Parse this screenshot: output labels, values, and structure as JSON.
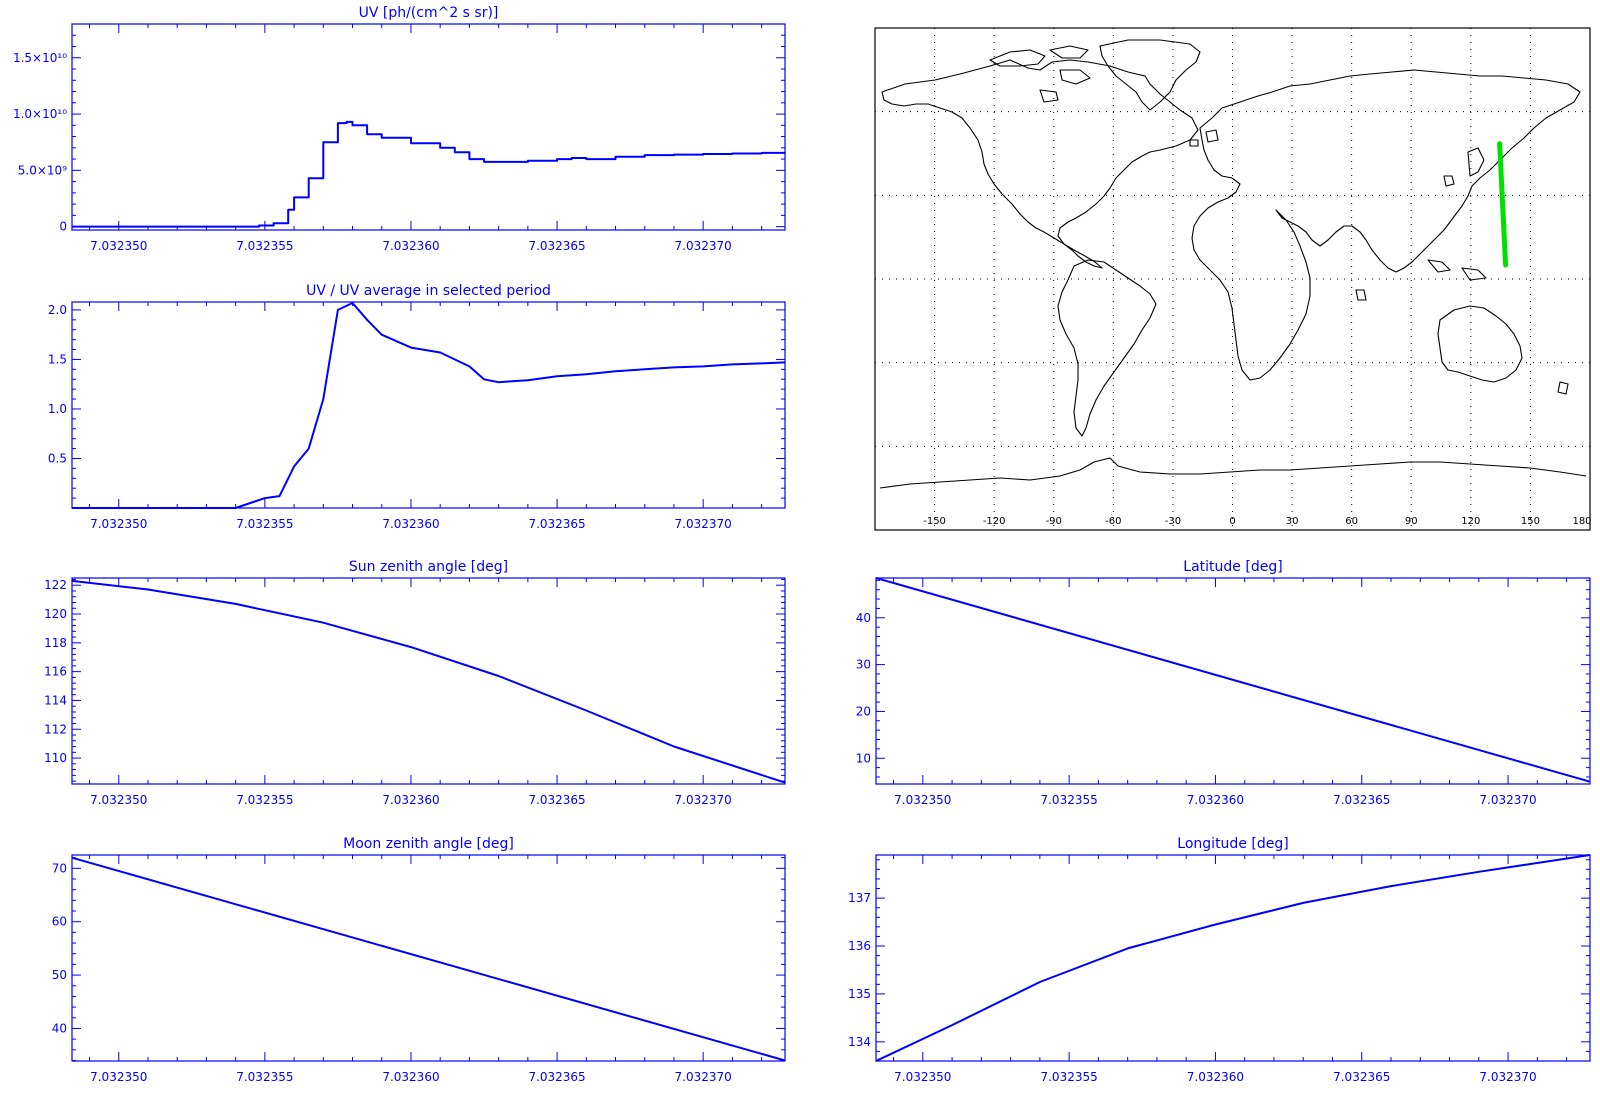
{
  "chart_data": [
    {
      "id": "uv",
      "type": "line",
      "title": "UV [ph/(cm^2 s sr)]",
      "step": true,
      "xlim": [
        7.0323484,
        7.0323728
      ],
      "x_ticks": [
        "7.032350",
        "7.032355",
        "7.032360",
        "7.032365",
        "7.032370"
      ],
      "ylim": [
        -300000000.0,
        18000000000.0
      ],
      "y_ticks": [
        {
          "value": 0,
          "label": "0"
        },
        {
          "value": 5000000000.0,
          "label": "5.0×10⁹"
        },
        {
          "value": 10000000000.0,
          "label": "1.0×10¹⁰"
        },
        {
          "value": 15000000000.0,
          "label": "1.5×10¹⁰"
        }
      ],
      "x": [
        7.0323484,
        7.032354,
        7.0323548,
        7.0323553,
        7.0323558,
        7.032356,
        7.0323565,
        7.032357,
        7.0323575,
        7.0323578,
        7.032358,
        7.0323585,
        7.032359,
        7.03236,
        7.032361,
        7.0323615,
        7.032362,
        7.0323625,
        7.032363,
        7.032364,
        7.032365,
        7.0323655,
        7.032366,
        7.032367,
        7.032368,
        7.032369,
        7.03237,
        7.032371,
        7.032372,
        7.0323728
      ],
      "y": [
        0,
        0,
        100000000.0,
        300000000.0,
        1500000000.0,
        2600000000.0,
        4300000000.0,
        7500000000.0,
        9200000000.0,
        9300000000.0,
        9000000000.0,
        8200000000.0,
        7900000000.0,
        7400000000.0,
        7000000000.0,
        6600000000.0,
        6000000000.0,
        5750000000.0,
        5750000000.0,
        5850000000.0,
        6000000000.0,
        6100000000.0,
        6000000000.0,
        6200000000.0,
        6350000000.0,
        6400000000.0,
        6450000000.0,
        6500000000.0,
        6550000000.0,
        6600000000.0
      ],
      "color": "#0000ff"
    },
    {
      "id": "uv_ratio",
      "type": "line",
      "title": "UV / UV average in selected period",
      "xlim": [
        7.0323484,
        7.0323728
      ],
      "x_ticks": [
        "7.032350",
        "7.032355",
        "7.032360",
        "7.032365",
        "7.032370"
      ],
      "ylim": [
        0.0,
        2.08
      ],
      "y_ticks": [
        {
          "value": 0.5,
          "label": "0.5"
        },
        {
          "value": 1.0,
          "label": "1.0"
        },
        {
          "value": 1.5,
          "label": "1.5"
        },
        {
          "value": 2.0,
          "label": "2.0"
        }
      ],
      "x": [
        7.0323484,
        7.032354,
        7.0323545,
        7.032355,
        7.0323555,
        7.032356,
        7.0323565,
        7.032357,
        7.0323575,
        7.032358,
        7.0323585,
        7.032359,
        7.03236,
        7.032361,
        7.032362,
        7.0323625,
        7.032363,
        7.032364,
        7.032365,
        7.032366,
        7.032367,
        7.032368,
        7.032369,
        7.03237,
        7.032371,
        7.032372,
        7.0323728
      ],
      "y": [
        0,
        0,
        0.05,
        0.1,
        0.12,
        0.42,
        0.6,
        1.1,
        2.0,
        2.07,
        1.9,
        1.75,
        1.62,
        1.57,
        1.43,
        1.3,
        1.27,
        1.29,
        1.33,
        1.35,
        1.38,
        1.4,
        1.42,
        1.43,
        1.45,
        1.46,
        1.47
      ],
      "color": "#0000ff"
    },
    {
      "id": "sun",
      "type": "line",
      "title": "Sun zenith angle [deg]",
      "xlim": [
        7.0323484,
        7.0323728
      ],
      "x_ticks": [
        "7.032350",
        "7.032355",
        "7.032360",
        "7.032365",
        "7.032370"
      ],
      "ylim": [
        108.2,
        122.5
      ],
      "y_ticks": [
        {
          "value": 110,
          "label": "110"
        },
        {
          "value": 112,
          "label": "112"
        },
        {
          "value": 114,
          "label": "114"
        },
        {
          "value": 116,
          "label": "116"
        },
        {
          "value": 118,
          "label": "118"
        },
        {
          "value": 120,
          "label": "120"
        },
        {
          "value": 122,
          "label": "122"
        }
      ],
      "x": [
        7.0323484,
        7.032351,
        7.032354,
        7.032357,
        7.03236,
        7.032363,
        7.032366,
        7.032369,
        7.0323728
      ],
      "y": [
        122.3,
        121.7,
        120.7,
        119.4,
        117.7,
        115.7,
        113.3,
        110.8,
        108.3
      ],
      "color": "#0000ff"
    },
    {
      "id": "lat",
      "type": "line",
      "title": "Latitude [deg]",
      "xlim": [
        7.0323484,
        7.0323728
      ],
      "x_ticks": [
        "7.032350",
        "7.032355",
        "7.032360",
        "7.032365",
        "7.032370"
      ],
      "ylim": [
        4.5,
        48.5
      ],
      "y_ticks": [
        {
          "value": 10,
          "label": "10"
        },
        {
          "value": 20,
          "label": "20"
        },
        {
          "value": 30,
          "label": "30"
        },
        {
          "value": 40,
          "label": "40"
        }
      ],
      "x": [
        7.0323484,
        7.0323728
      ],
      "y": [
        48.5,
        5.0
      ],
      "color": "#0000ff"
    },
    {
      "id": "moon",
      "type": "line",
      "title": "Moon zenith angle [deg]",
      "xlim": [
        7.0323484,
        7.0323728
      ],
      "x_ticks": [
        "7.032350",
        "7.032355",
        "7.032360",
        "7.032365",
        "7.032370"
      ],
      "ylim": [
        33.9,
        72.5
      ],
      "y_ticks": [
        {
          "value": 40,
          "label": "40"
        },
        {
          "value": 50,
          "label": "50"
        },
        {
          "value": 60,
          "label": "60"
        },
        {
          "value": 70,
          "label": "70"
        }
      ],
      "x": [
        7.0323484,
        7.0323728
      ],
      "y": [
        72.0,
        34.0
      ],
      "color": "#0000ff"
    },
    {
      "id": "lon",
      "type": "line",
      "title": "Longitude [deg]",
      "xlim": [
        7.0323484,
        7.0323728
      ],
      "x_ticks": [
        "7.032350",
        "7.032355",
        "7.032360",
        "7.032365",
        "7.032370"
      ],
      "ylim": [
        133.6,
        137.9
      ],
      "y_ticks": [
        {
          "value": 134,
          "label": "134"
        },
        {
          "value": 135,
          "label": "135"
        },
        {
          "value": 136,
          "label": "136"
        },
        {
          "value": 137,
          "label": "137"
        }
      ],
      "x": [
        7.0323484,
        7.032351,
        7.032354,
        7.032357,
        7.03236,
        7.032363,
        7.032366,
        7.032369,
        7.0323728
      ],
      "y": [
        133.6,
        134.35,
        135.25,
        135.95,
        136.45,
        136.9,
        137.25,
        137.55,
        137.9
      ],
      "color": "#0000ff"
    }
  ],
  "map": {
    "x_ticks": [
      "-150",
      "-120",
      "-90",
      "-60",
      "-30",
      "0",
      "30",
      "60",
      "90",
      "120",
      "150",
      "180"
    ],
    "lon_range": [
      -180,
      180
    ],
    "lat_range": [
      -90,
      90
    ],
    "track": {
      "color": "#00e000",
      "lon": [
        134.5,
        137.5
      ],
      "lat": [
        48.5,
        5.0
      ]
    }
  },
  "colors": {
    "axis": "#0000ff",
    "map_line": "#000000",
    "grid": "#000000"
  }
}
